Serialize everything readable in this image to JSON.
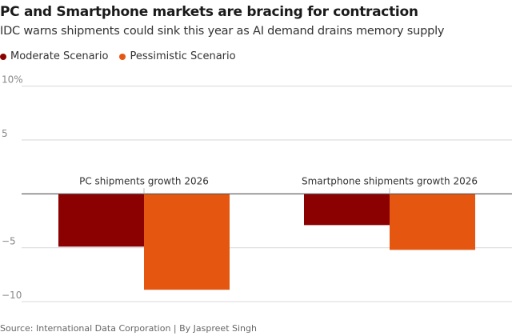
{
  "chart_data": {
    "type": "bar",
    "title": "PC and Smartphone markets are bracing for contraction",
    "subtitle": "IDC warns shipments could sink this year as AI demand drains memory supply",
    "categories": [
      "PC shipments growth 2026",
      "Smartphone shipments growth 2026"
    ],
    "series": [
      {
        "name": "Moderate Scenario",
        "color": "#8b0000",
        "values": [
          -4.9,
          -2.9
        ]
      },
      {
        "name": "Pessimistic Scenario",
        "color": "#e55711",
        "values": [
          -8.9,
          -5.2
        ]
      }
    ],
    "yticks": [
      {
        "value": 10,
        "label": "10%"
      },
      {
        "value": 5,
        "label": "5"
      },
      {
        "value": -5,
        "label": "−5"
      },
      {
        "value": -10,
        "label": "−10"
      }
    ],
    "ylim": [
      -10,
      10
    ],
    "unit": "%",
    "grid": true,
    "legend": "top-left",
    "source": "Source: International Data Corporation | By Jaspreet Singh"
  }
}
